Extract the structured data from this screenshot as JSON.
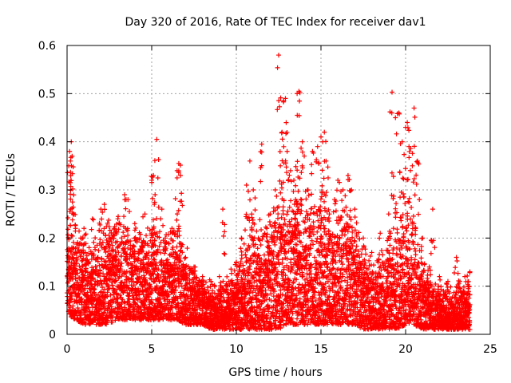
{
  "chart_data": {
    "type": "scatter",
    "title": "Day 320 of 2016, Rate Of TEC Index for receiver dav1",
    "xlabel": "GPS time / hours",
    "ylabel": "ROTI / TECUs",
    "xlim": [
      0,
      25
    ],
    "ylim": [
      0,
      0.6
    ],
    "xticks": [
      0,
      5,
      10,
      15,
      20,
      25
    ],
    "yticks": [
      0,
      0.1,
      0.2,
      0.3,
      0.4,
      0.5,
      0.6
    ],
    "xtick_labels": [
      "0",
      "5",
      "10",
      "15",
      "20",
      "25"
    ],
    "ytick_labels": [
      "0",
      "0.1",
      "0.2",
      "0.3",
      "0.4",
      "0.5",
      "0.6"
    ],
    "grid": true,
    "marker": "plus",
    "color": "#ff0000",
    "series": [
      {
        "name": "dav1",
        "points": [
          [
            0.1,
            0.35
          ],
          [
            0.15,
            0.38
          ],
          [
            0.2,
            0.36
          ],
          [
            0.25,
            0.4
          ],
          [
            0.3,
            0.37
          ],
          [
            0.4,
            0.25
          ],
          [
            0.5,
            0.22
          ],
          [
            0.8,
            0.2
          ],
          [
            1.0,
            0.22
          ],
          [
            1.3,
            0.18
          ],
          [
            1.5,
            0.24
          ],
          [
            2.0,
            0.26
          ],
          [
            2.2,
            0.27
          ],
          [
            2.5,
            0.2
          ],
          [
            2.8,
            0.22
          ],
          [
            3.0,
            0.24
          ],
          [
            3.4,
            0.29
          ],
          [
            3.6,
            0.28
          ],
          [
            4.0,
            0.23
          ],
          [
            4.3,
            0.2
          ],
          [
            4.6,
            0.25
          ],
          [
            5.0,
            0.32
          ],
          [
            5.1,
            0.33
          ],
          [
            5.2,
            0.29
          ],
          [
            5.3,
            0.405
          ],
          [
            5.6,
            0.26
          ],
          [
            5.8,
            0.2
          ],
          [
            6.2,
            0.22
          ],
          [
            6.5,
            0.34
          ],
          [
            6.6,
            0.355
          ],
          [
            6.7,
            0.33
          ],
          [
            7.0,
            0.16
          ],
          [
            7.5,
            0.14
          ],
          [
            8.0,
            0.12
          ],
          [
            8.5,
            0.11
          ],
          [
            9.0,
            0.12
          ],
          [
            9.2,
            0.26
          ],
          [
            9.5,
            0.1
          ],
          [
            10.0,
            0.15
          ],
          [
            10.3,
            0.2
          ],
          [
            10.6,
            0.31
          ],
          [
            10.8,
            0.36
          ],
          [
            11.0,
            0.3
          ],
          [
            11.3,
            0.2
          ],
          [
            11.5,
            0.395
          ],
          [
            11.8,
            0.22
          ],
          [
            12.0,
            0.25
          ],
          [
            12.3,
            0.3
          ],
          [
            12.5,
            0.58
          ],
          [
            12.6,
            0.35
          ],
          [
            12.7,
            0.42
          ],
          [
            12.8,
            0.485
          ],
          [
            12.9,
            0.49
          ],
          [
            13.0,
            0.38
          ],
          [
            13.2,
            0.34
          ],
          [
            13.4,
            0.32
          ],
          [
            13.5,
            0.28
          ],
          [
            13.6,
            0.455
          ],
          [
            13.7,
            0.505
          ],
          [
            13.9,
            0.4
          ],
          [
            14.2,
            0.3
          ],
          [
            14.5,
            0.38
          ],
          [
            14.8,
            0.39
          ],
          [
            15.0,
            0.41
          ],
          [
            15.1,
            0.4
          ],
          [
            15.2,
            0.42
          ],
          [
            15.3,
            0.36
          ],
          [
            15.5,
            0.25
          ],
          [
            15.8,
            0.28
          ],
          [
            16.0,
            0.32
          ],
          [
            16.3,
            0.3
          ],
          [
            16.6,
            0.33
          ],
          [
            16.8,
            0.3
          ],
          [
            17.0,
            0.26
          ],
          [
            17.5,
            0.2
          ],
          [
            18.0,
            0.17
          ],
          [
            18.5,
            0.21
          ],
          [
            19.0,
            0.25
          ],
          [
            19.2,
            0.503
          ],
          [
            19.4,
            0.45
          ],
          [
            19.6,
            0.46
          ],
          [
            19.8,
            0.4
          ],
          [
            20.0,
            0.43
          ],
          [
            20.1,
            0.44
          ],
          [
            20.2,
            0.39
          ],
          [
            20.4,
            0.35
          ],
          [
            20.5,
            0.47
          ],
          [
            20.7,
            0.36
          ],
          [
            21.0,
            0.2
          ],
          [
            21.4,
            0.14
          ],
          [
            21.6,
            0.26
          ],
          [
            22.0,
            0.12
          ],
          [
            22.5,
            0.11
          ],
          [
            23.0,
            0.16
          ],
          [
            23.5,
            0.12
          ],
          [
            23.8,
            0.13
          ]
        ]
      }
    ],
    "envelope": {
      "hours": [
        0,
        0.5,
        1,
        1.5,
        2,
        2.5,
        3,
        3.5,
        4,
        4.5,
        5,
        5.5,
        6,
        6.5,
        7,
        7.5,
        8,
        8.5,
        9,
        9.5,
        10,
        10.5,
        11,
        11.5,
        12,
        12.5,
        13,
        13.5,
        14,
        14.5,
        15,
        15.5,
        16,
        16.5,
        17,
        17.5,
        18,
        18.5,
        19,
        19.5,
        20,
        20.5,
        21,
        21.5,
        22,
        22.5,
        23,
        23.5,
        23.8
      ],
      "upper": [
        0.2,
        0.2,
        0.17,
        0.16,
        0.2,
        0.2,
        0.21,
        0.21,
        0.2,
        0.17,
        0.2,
        0.18,
        0.18,
        0.2,
        0.15,
        0.12,
        0.1,
        0.09,
        0.09,
        0.1,
        0.12,
        0.16,
        0.2,
        0.18,
        0.2,
        0.25,
        0.26,
        0.26,
        0.25,
        0.25,
        0.25,
        0.22,
        0.22,
        0.24,
        0.2,
        0.16,
        0.12,
        0.14,
        0.18,
        0.2,
        0.22,
        0.2,
        0.14,
        0.1,
        0.08,
        0.08,
        0.09,
        0.1,
        0.1
      ],
      "lower": [
        0.04,
        0.03,
        0.02,
        0.02,
        0.02,
        0.02,
        0.03,
        0.03,
        0.03,
        0.03,
        0.03,
        0.03,
        0.03,
        0.03,
        0.02,
        0.02,
        0.02,
        0.01,
        0.01,
        0.01,
        0.01,
        0.01,
        0.01,
        0.01,
        0.01,
        0.01,
        0.02,
        0.02,
        0.02,
        0.02,
        0.02,
        0.02,
        0.02,
        0.02,
        0.02,
        0.01,
        0.01,
        0.01,
        0.01,
        0.01,
        0.02,
        0.02,
        0.01,
        0.01,
        0.01,
        0.01,
        0.01,
        0.01,
        0.01
      ]
    }
  }
}
